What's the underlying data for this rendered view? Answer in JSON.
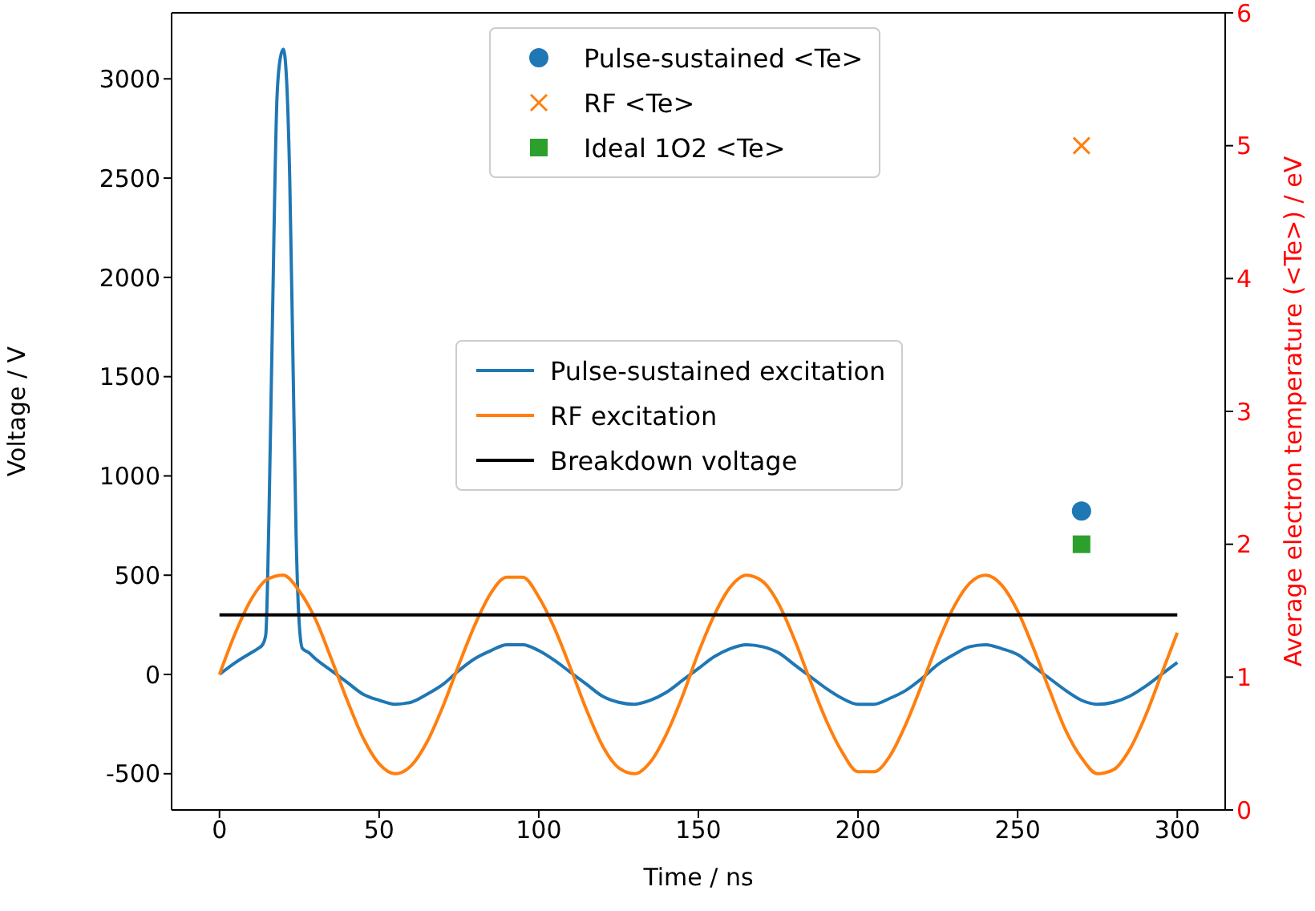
{
  "chart_data": {
    "type": "line",
    "xlabel": "Time / ns",
    "ylabel": "Voltage / V",
    "y2label": "Average electron temperature (<Te>) / eV",
    "xlim": [
      -15,
      315
    ],
    "xticks": [
      0,
      50,
      100,
      150,
      200,
      250,
      300
    ],
    "ylim": [
      -682.5,
      3332.5
    ],
    "yticks": [
      -500,
      0,
      500,
      1000,
      1500,
      2000,
      2500,
      3000
    ],
    "y2lim": [
      0,
      6
    ],
    "y2ticks": [
      0,
      1,
      2,
      3,
      4,
      5,
      6
    ],
    "grid": false,
    "legend": "top",
    "series": [
      {
        "name": "Pulse-sustained excitation",
        "color": "#1f77b4",
        "marker": "none",
        "x": [
          0,
          5,
          10,
          12,
          13.5,
          14.5,
          15.5,
          16.5,
          18,
          19,
          20,
          21,
          22,
          23,
          24,
          25,
          26,
          28,
          30,
          35,
          40,
          45,
          50,
          55,
          60,
          65,
          70,
          75,
          80,
          85,
          90,
          95,
          100,
          105,
          110,
          115,
          120,
          125,
          130,
          135,
          140,
          145,
          150,
          155,
          160,
          165,
          170,
          175,
          180,
          185,
          190,
          195,
          200,
          205,
          210,
          215,
          220,
          225,
          230,
          235,
          240,
          245,
          250,
          255,
          260,
          265,
          270,
          275,
          280,
          285,
          290,
          295,
          300
        ],
        "values": [
          0,
          60,
          110,
          130,
          150,
          200,
          800,
          1700,
          2900,
          3100,
          3150,
          3000,
          2500,
          1600,
          700,
          250,
          130,
          110,
          80,
          20,
          -40,
          -100,
          -130,
          -150,
          -140,
          -100,
          -50,
          20,
          80,
          120,
          150,
          150,
          120,
          70,
          10,
          -50,
          -110,
          -140,
          -150,
          -130,
          -90,
          -30,
          30,
          90,
          130,
          150,
          140,
          110,
          50,
          -10,
          -70,
          -120,
          -150,
          -150,
          -120,
          -80,
          -20,
          50,
          100,
          140,
          150,
          130,
          100,
          40,
          -20,
          -80,
          -130,
          -150,
          -140,
          -110,
          -60,
          0,
          60
        ]
      },
      {
        "name": "RF excitation",
        "color": "#ff7f0e",
        "marker": "none",
        "x": [
          0,
          5,
          10,
          15,
          20,
          25,
          30,
          35,
          40,
          45,
          50,
          55,
          60,
          65,
          70,
          75,
          80,
          85,
          90,
          95,
          100,
          105,
          110,
          115,
          120,
          125,
          130,
          135,
          140,
          145,
          150,
          155,
          160,
          165,
          170,
          175,
          180,
          185,
          190,
          195,
          200,
          205,
          210,
          215,
          220,
          225,
          230,
          235,
          240,
          245,
          250,
          255,
          260,
          265,
          270,
          275,
          280,
          285,
          290,
          295,
          300
        ],
        "values": [
          0,
          210,
          380,
          480,
          500,
          420,
          280,
          80,
          -130,
          -320,
          -450,
          -500,
          -460,
          -340,
          -160,
          50,
          250,
          410,
          490,
          490,
          390,
          230,
          30,
          -180,
          -360,
          -470,
          -500,
          -440,
          -300,
          -110,
          110,
          300,
          440,
          500,
          470,
          360,
          180,
          -30,
          -230,
          -390,
          -490,
          -490,
          -410,
          -250,
          -50,
          160,
          340,
          460,
          500,
          450,
          320,
          130,
          -80,
          -280,
          -420,
          -500,
          -480,
          -380,
          -210,
          0,
          210
        ]
      },
      {
        "name": "Breakdown voltage",
        "color": "#000000",
        "marker": "none",
        "x": [
          0,
          300
        ],
        "values": [
          300,
          300
        ]
      },
      {
        "name": "Pulse-sustained <Te>",
        "type": "scatter",
        "axis": "y2",
        "color": "#1f77b4",
        "marker": "circle",
        "x": [
          270
        ],
        "values": [
          2.25
        ]
      },
      {
        "name": "RF <Te>",
        "type": "scatter",
        "axis": "y2",
        "color": "#ff7f0e",
        "marker": "cross",
        "x": [
          270
        ],
        "values": [
          5.0
        ]
      },
      {
        "name": "Ideal 1O2 <Te>",
        "type": "scatter",
        "axis": "y2",
        "color": "#2ca02c",
        "marker": "square",
        "x": [
          270
        ],
        "values": [
          2.0
        ]
      }
    ]
  }
}
